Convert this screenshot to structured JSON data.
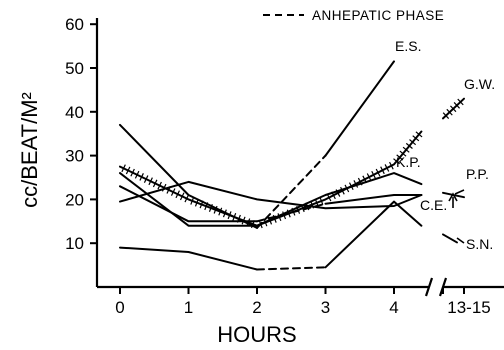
{
  "chart_data": {
    "type": "line",
    "title": "",
    "xlabel": "HOURS",
    "ylabel": "cc/BEAT/M²",
    "x_ticks": [
      "0",
      "1",
      "2",
      "3",
      "4",
      "13-15"
    ],
    "y_ticks": [
      10,
      20,
      30,
      40,
      50,
      60
    ],
    "ylim": [
      0,
      60
    ],
    "grid": false,
    "legend": [
      {
        "label": "ANHEPATIC PHASE",
        "style": "dashed",
        "position": "top-right"
      }
    ],
    "series": [
      {
        "name": "E.S.",
        "style": "solid",
        "hatched": false,
        "points": [
          {
            "x": 0,
            "y": 37
          },
          {
            "x": 1,
            "y": 21
          },
          {
            "x": 2,
            "y": 13.5
          }
        ],
        "dashed_points": [
          {
            "x": 2,
            "y": 13.5
          },
          {
            "x": 3,
            "y": 30
          }
        ],
        "points_after": [
          {
            "x": 3,
            "y": 30
          },
          {
            "x": 4,
            "y": 51.5
          }
        ],
        "late": []
      },
      {
        "name": "G.W.",
        "style": "solid",
        "hatched": true,
        "points": [
          {
            "x": 0,
            "y": 27.5
          },
          {
            "x": 1,
            "y": 20
          },
          {
            "x": 2,
            "y": 14
          },
          {
            "x": 3,
            "y": 20
          },
          {
            "x": 4,
            "y": 28
          },
          {
            "x": 4.4,
            "y": 35.5
          }
        ],
        "late": [
          {
            "x": "13",
            "y": 38.5
          },
          {
            "x": "15",
            "y": 43
          }
        ]
      },
      {
        "name": "K.P.",
        "style": "solid",
        "hatched": false,
        "points": [
          {
            "x": 0,
            "y": 19.5
          },
          {
            "x": 1,
            "y": 24
          },
          {
            "x": 2,
            "y": 20
          },
          {
            "x": 3,
            "y": 18
          },
          {
            "x": 4,
            "y": 18.5
          },
          {
            "x": 4.4,
            "y": 21
          }
        ],
        "late": []
      },
      {
        "name": "P.P.",
        "style": "solid",
        "hatched": false,
        "points": [
          {
            "x": 0,
            "y": 23
          },
          {
            "x": 1,
            "y": 15
          },
          {
            "x": 2,
            "y": 15
          }
        ],
        "dashed_points": [
          {
            "x": 2,
            "y": 15
          },
          {
            "x": 3,
            "y": 19
          }
        ],
        "points_after": [
          {
            "x": 3,
            "y": 19
          },
          {
            "x": 4,
            "y": 21
          },
          {
            "x": 4.4,
            "y": 21
          }
        ],
        "late": [
          {
            "x": "13",
            "y": 21.5
          },
          {
            "x": "15",
            "y": 20.5
          }
        ]
      },
      {
        "name": "C.E.",
        "style": "solid",
        "hatched": false,
        "points": [
          {
            "x": 0,
            "y": 26
          },
          {
            "x": 1,
            "y": 14
          },
          {
            "x": 2,
            "y": 14
          },
          {
            "x": 3,
            "y": 21
          },
          {
            "x": 4,
            "y": 26
          },
          {
            "x": 4.4,
            "y": 23.5
          }
        ],
        "late": []
      },
      {
        "name": "S.N.",
        "style": "solid",
        "hatched": false,
        "points": [
          {
            "x": 0,
            "y": 9
          },
          {
            "x": 1,
            "y": 8
          },
          {
            "x": 2,
            "y": 4
          }
        ],
        "dashed_points": [
          {
            "x": 2,
            "y": 4
          },
          {
            "x": 3,
            "y": 4.5
          }
        ],
        "points_after": [
          {
            "x": 3,
            "y": 4.5
          },
          {
            "x": 4,
            "y": 19.5
          },
          {
            "x": 4.4,
            "y": 14
          }
        ],
        "late": [
          {
            "x": "13",
            "y": 12
          }
        ]
      }
    ],
    "annotations": [
      "E.S.",
      "G.W.",
      "K.P.",
      "P.P.",
      "C.E.",
      "S.N."
    ]
  }
}
